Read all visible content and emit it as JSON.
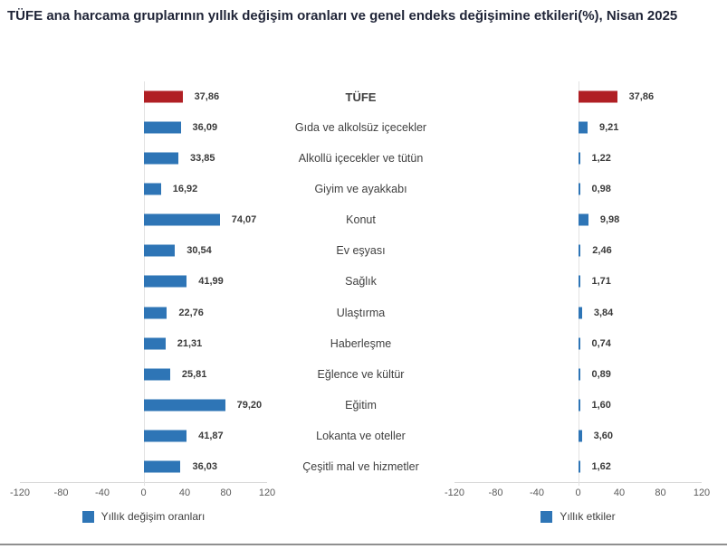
{
  "title": "TÜFE ana harcama gruplarının yıllık değişim oranları ve genel endeks değişimine etkileri(%), Nisan 2025",
  "colors": {
    "series_blue": "#2e75b6",
    "highlight_red": "#b01f24",
    "axis_line": "#d9d9d9",
    "tick_text": "#595959",
    "value_text": "#3a3a3a",
    "category_text": "#404040",
    "title_text": "#1f2437",
    "bottom_rule": "#8f8f8f"
  },
  "chart_data": [
    {
      "type": "bar",
      "orientation": "horizontal",
      "legend": "Yıllık değişim oranları",
      "legend_position": "bottom",
      "grid": "off",
      "xlim": [
        -120,
        120
      ],
      "xticks": [
        -120,
        -80,
        -40,
        0,
        40,
        80,
        120
      ],
      "xtick_labels": [
        "-120",
        "-80",
        "-40",
        "0",
        "40",
        "80",
        "120"
      ],
      "highlight_index": 0,
      "categories": [
        "TÜFE",
        "Gıda ve alkolsüz içecekler",
        "Alkollü içecekler ve tütün",
        "Giyim ve ayakkabı",
        "Konut",
        "Ev eşyası",
        "Sağlık",
        "Ulaştırma",
        "Haberleşme",
        "Eğlence ve kültür",
        "Eğitim",
        "Lokanta ve oteller",
        "Çeşitli mal ve hizmetler"
      ],
      "values": [
        37.86,
        36.09,
        33.85,
        16.92,
        74.07,
        30.54,
        41.99,
        22.76,
        21.31,
        25.81,
        79.2,
        41.87,
        36.03
      ],
      "value_labels": [
        "37,86",
        "36,09",
        "33,85",
        "16,92",
        "74,07",
        "30,54",
        "41,99",
        "22,76",
        "21,31",
        "25,81",
        "79,20",
        "41,87",
        "36,03"
      ]
    },
    {
      "type": "bar",
      "orientation": "horizontal",
      "legend": "Yıllık etkiler",
      "legend_position": "bottom",
      "grid": "off",
      "xlim": [
        -120,
        120
      ],
      "xticks": [
        -120,
        -80,
        -40,
        0,
        40,
        80,
        120
      ],
      "xtick_labels": [
        "-120",
        "-80",
        "-40",
        "0",
        "40",
        "80",
        "120"
      ],
      "highlight_index": 0,
      "categories": [
        "TÜFE",
        "Gıda ve alkolsüz içecekler",
        "Alkollü içecekler ve tütün",
        "Giyim ve ayakkabı",
        "Konut",
        "Ev eşyası",
        "Sağlık",
        "Ulaştırma",
        "Haberleşme",
        "Eğlence ve kültür",
        "Eğitim",
        "Lokanta ve oteller",
        "Çeşitli mal ve hizmetler"
      ],
      "values": [
        37.86,
        9.21,
        1.22,
        0.98,
        9.98,
        2.46,
        1.71,
        3.84,
        0.74,
        0.89,
        1.6,
        3.6,
        1.62
      ],
      "value_labels": [
        "37,86",
        "9,21",
        "1,22",
        "0,98",
        "9,98",
        "2,46",
        "1,71",
        "3,84",
        "0,74",
        "0,89",
        "1,60",
        "3,60",
        "1,62"
      ]
    }
  ]
}
